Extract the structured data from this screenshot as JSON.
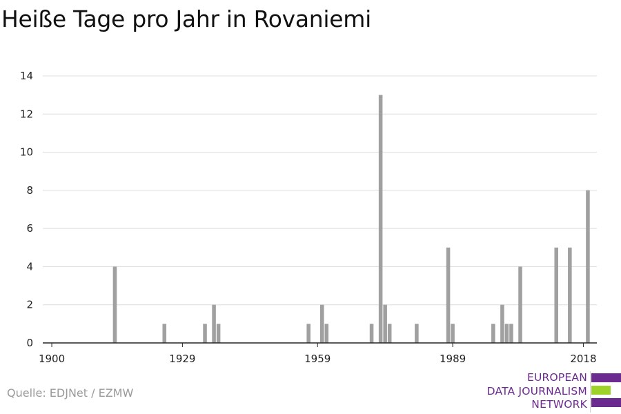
{
  "title": "Heiße Tage pro Jahr in Rovaniemi",
  "source": "Quelle: EDJNet / EZMW",
  "logo": {
    "lines": [
      "EUROPEAN",
      "DATA JOURNALISM",
      "NETWORK"
    ],
    "colors": {
      "text": "#6a2a8f",
      "bar_purple": "#6a2a8f",
      "bar_green": "#9ed12a"
    }
  },
  "colors": {
    "bars": "#a0a0a0",
    "grid": "#dcdcdc",
    "axis": "#222222"
  },
  "chart_data": {
    "type": "bar",
    "title": "Heiße Tage pro Jahr in Rovaniemi",
    "xlabel": "",
    "ylabel": "",
    "xlim": [
      1898,
      2021
    ],
    "ylim": [
      0,
      14
    ],
    "x_ticks": [
      1900,
      1929,
      1959,
      1989,
      2018
    ],
    "y_ticks": [
      0,
      2,
      4,
      6,
      8,
      10,
      12,
      14
    ],
    "grid": true,
    "legend": "none",
    "points": [
      {
        "x": 1914,
        "y": 4
      },
      {
        "x": 1925,
        "y": 1
      },
      {
        "x": 1934,
        "y": 1
      },
      {
        "x": 1936,
        "y": 2
      },
      {
        "x": 1937,
        "y": 1
      },
      {
        "x": 1957,
        "y": 1
      },
      {
        "x": 1960,
        "y": 2
      },
      {
        "x": 1961,
        "y": 1
      },
      {
        "x": 1971,
        "y": 1
      },
      {
        "x": 1973,
        "y": 13
      },
      {
        "x": 1974,
        "y": 2
      },
      {
        "x": 1975,
        "y": 1
      },
      {
        "x": 1981,
        "y": 1
      },
      {
        "x": 1988,
        "y": 5
      },
      {
        "x": 1989,
        "y": 1
      },
      {
        "x": 1998,
        "y": 1
      },
      {
        "x": 2000,
        "y": 2
      },
      {
        "x": 2001,
        "y": 1
      },
      {
        "x": 2002,
        "y": 1
      },
      {
        "x": 2004,
        "y": 4
      },
      {
        "x": 2012,
        "y": 5
      },
      {
        "x": 2015,
        "y": 5
      },
      {
        "x": 2019,
        "y": 8
      }
    ]
  }
}
